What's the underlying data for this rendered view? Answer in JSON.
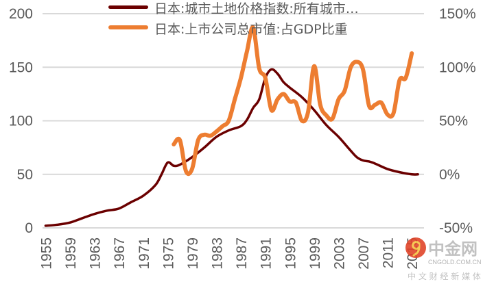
{
  "chart_data": {
    "type": "line",
    "title": "",
    "xlabel": "",
    "ylabel": "",
    "y2label": "",
    "grid": true,
    "legend_position": "top",
    "x_ticks": [
      "1955",
      "1959",
      "1963",
      "1967",
      "1971",
      "1975",
      "1979",
      "1983",
      "1987",
      "1991",
      "1995",
      "1999",
      "2003",
      "2007",
      "2011",
      "2015"
    ],
    "ylim": [
      0,
      200
    ],
    "y_ticks": [
      "0",
      "50",
      "100",
      "150",
      "200"
    ],
    "y2lim": [
      -50,
      150
    ],
    "y2_ticks": [
      "-50%",
      "0%",
      "50%",
      "100%",
      "150%"
    ],
    "series": [
      {
        "name": "日本:城市土地价格指数:所有城市…",
        "axis": "left",
        "color": "#6B0000",
        "x": [
          1955,
          1957,
          1959,
          1961,
          1963,
          1965,
          1967,
          1969,
          1971,
          1973,
          1974,
          1975,
          1976,
          1977,
          1979,
          1981,
          1983,
          1985,
          1987,
          1988,
          1989,
          1990,
          1991,
          1992,
          1993,
          1994,
          1995,
          1997,
          1999,
          2001,
          2003,
          2005,
          2006,
          2007,
          2008,
          2009,
          2011,
          2013,
          2015,
          2016
        ],
        "values": [
          2,
          3,
          5,
          9,
          13,
          16,
          18,
          24,
          30,
          40,
          50,
          61,
          58,
          59,
          66,
          75,
          85,
          91,
          95,
          101,
          112,
          120,
          140,
          148,
          144,
          136,
          131,
          122,
          110,
          96,
          85,
          72,
          66,
          63,
          62,
          60,
          55,
          52,
          50,
          50
        ]
      },
      {
        "name": "日本:上市公司总市值:占GDP比重",
        "axis": "right",
        "color": "#ED7D31",
        "x": [
          1976,
          1977,
          1978,
          1979,
          1980,
          1981,
          1982,
          1983,
          1984,
          1985,
          1986,
          1987,
          1988,
          1989,
          1990,
          1991,
          1992,
          1993,
          1994,
          1995,
          1996,
          1997,
          1998,
          1999,
          2000,
          2001,
          2002,
          2003,
          2004,
          2005,
          2006,
          2007,
          2008,
          2009,
          2010,
          2011,
          2012,
          2013,
          2014,
          2015
        ],
        "values": [
          28,
          32,
          3,
          5,
          32,
          37,
          36,
          40,
          45,
          50,
          70,
          90,
          115,
          137,
          99,
          90,
          60,
          70,
          75,
          68,
          67,
          50,
          58,
          101,
          65,
          55,
          52,
          70,
          78,
          100,
          105,
          98,
          64,
          65,
          67,
          56,
          57,
          88,
          90,
          113
        ]
      }
    ]
  },
  "watermark": {
    "brand": "中金网",
    "domain": "CNGOLD.COM.CN",
    "slogan": "中 文 财 经 新 媒 体"
  }
}
